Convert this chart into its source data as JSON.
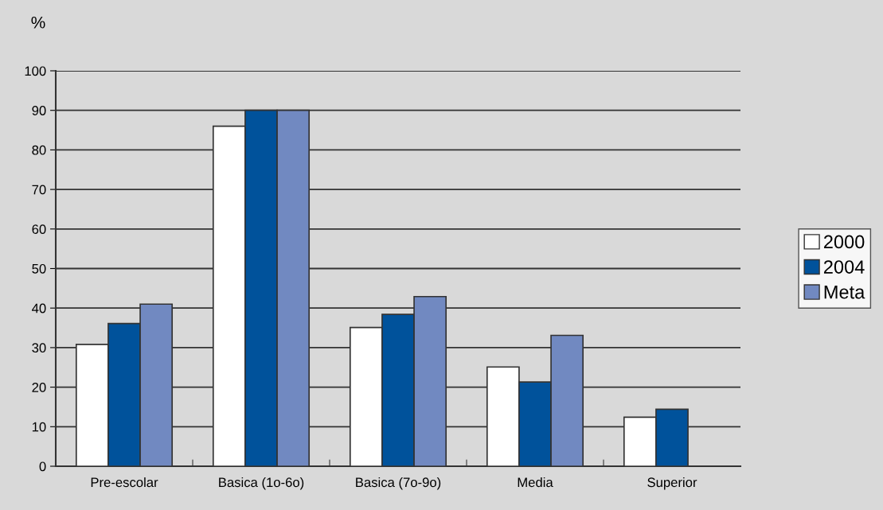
{
  "chart_data": {
    "type": "bar",
    "ylabel": "%",
    "categories": [
      "Pre-escolar",
      "Basica (1o-6o)",
      "Basica (7o-9o)",
      "Media",
      "Superior"
    ],
    "series": [
      {
        "name": "2000",
        "color": "#ffffff",
        "values": [
          30.8,
          86,
          35.1,
          25.1,
          12.4
        ]
      },
      {
        "name": "2004",
        "color": "#00529b",
        "values": [
          36.1,
          90,
          38.4,
          21.3,
          14.4
        ]
      },
      {
        "name": "Meta",
        "color": "#7189c1",
        "values": [
          41,
          90,
          42.9,
          33.1,
          null
        ]
      }
    ],
    "ylim": [
      0,
      100
    ],
    "yticks": [
      0,
      10,
      20,
      30,
      40,
      50,
      60,
      70,
      80,
      90,
      100
    ],
    "grid": "y",
    "legend": "right"
  }
}
